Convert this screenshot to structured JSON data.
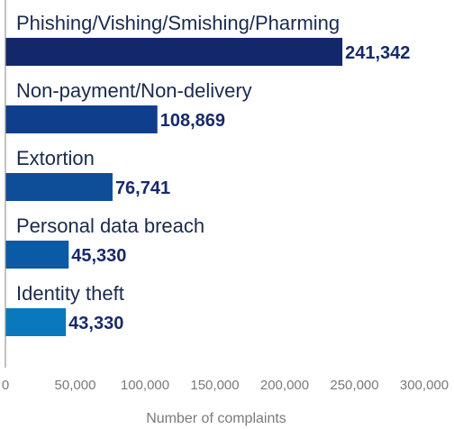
{
  "chart_data": {
    "type": "bar",
    "orientation": "horizontal",
    "categories": [
      "Phishing/Vishing/Smishing/Pharming",
      "Non-payment/Non-delivery",
      "Extortion",
      "Personal data breach",
      "Identity theft"
    ],
    "values": [
      241342,
      108869,
      76741,
      45330,
      43330
    ],
    "value_labels": [
      "241,342",
      "108,869",
      "76,741",
      "45,330",
      "43,330"
    ],
    "bar_colors": [
      "#13286b",
      "#0f3f8c",
      "#0e4d97",
      "#0a5aa6",
      "#0a78bd"
    ],
    "xlabel": "Number of complaints",
    "ylabel": "",
    "xlim": [
      0,
      300000
    ],
    "xticks": [
      0,
      50000,
      100000,
      150000,
      200000,
      250000,
      300000
    ],
    "xtick_labels": [
      "0",
      "50,000",
      "100,000",
      "150,000",
      "200,000",
      "250,000",
      "300,000"
    ],
    "grid": false
  }
}
